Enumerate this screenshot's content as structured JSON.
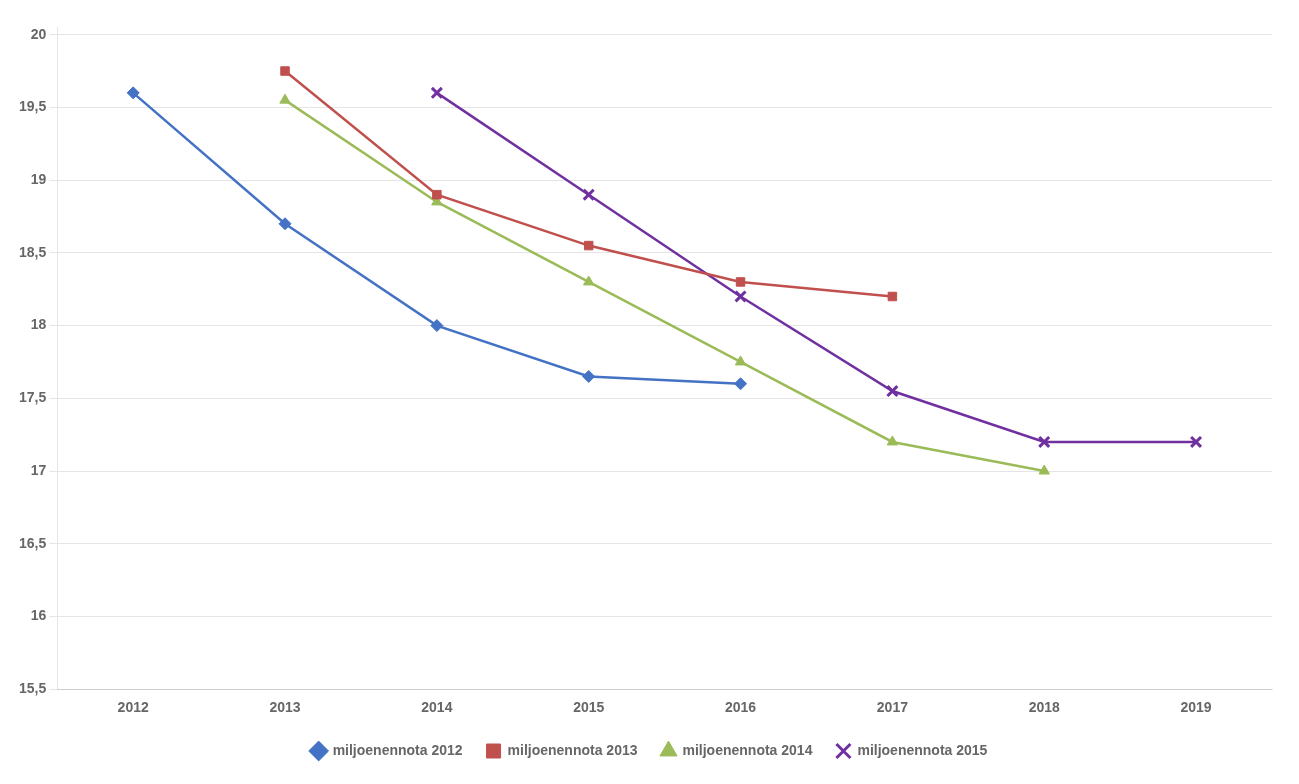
{
  "chart_data": {
    "type": "line",
    "series": [
      {
        "name": "miljoenennota 2012",
        "color": "#4472C4",
        "marker": "diamond",
        "x": [
          2012,
          2013,
          2014,
          2015,
          2016
        ],
        "values": [
          19.6,
          18.7,
          18.0,
          17.65,
          17.6
        ]
      },
      {
        "name": "miljoenennota 2013",
        "color": "#C0504D",
        "marker": "square",
        "x": [
          2013,
          2014,
          2015,
          2016,
          2017
        ],
        "values": [
          19.75,
          18.9,
          18.55,
          18.3,
          18.2
        ]
      },
      {
        "name": "miljoenennota 2014",
        "color": "#9BBB59",
        "marker": "triangle",
        "x": [
          2013,
          2014,
          2015,
          2016,
          2017,
          2018
        ],
        "values": [
          19.55,
          18.85,
          18.3,
          17.75,
          17.2,
          17.0
        ]
      },
      {
        "name": "miljoenennota 2015",
        "color": "#7030A0",
        "marker": "cross",
        "x": [
          2014,
          2015,
          2016,
          2017,
          2018,
          2019
        ],
        "values": [
          19.6,
          18.9,
          18.2,
          17.55,
          17.2,
          17.2
        ]
      }
    ],
    "xlim": [
      2011.5,
      2019.5
    ],
    "xticks": [
      2012,
      2013,
      2014,
      2015,
      2016,
      2017,
      2018,
      2019
    ],
    "ylim": [
      15.5,
      20.05
    ],
    "yticks": [
      {
        "value": 15.5,
        "label": "15,5"
      },
      16,
      {
        "value": 16.5,
        "label": "16,5"
      },
      17,
      {
        "value": 17.5,
        "label": "17,5"
      },
      18,
      {
        "value": 18.5,
        "label": "18,5"
      },
      19,
      {
        "value": 19.5,
        "label": "19,5"
      },
      20
    ],
    "grid": "y",
    "legend": "bottom"
  }
}
